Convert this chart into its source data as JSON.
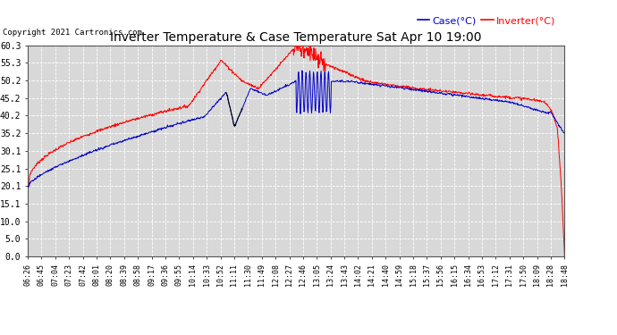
{
  "title": "Inverter Temperature & Case Temperature Sat Apr 10 19:00",
  "copyright": "Copyright 2021 Cartronics.com",
  "legend_case": "Case(°C)",
  "legend_inverter": "Inverter(°C)",
  "ylim": [
    0.0,
    60.3
  ],
  "yticks": [
    0.0,
    5.0,
    10.0,
    15.1,
    20.1,
    25.1,
    30.1,
    35.2,
    40.2,
    45.2,
    50.2,
    55.3,
    60.3
  ],
  "bg_color": "#ffffff",
  "plot_bg_color": "#d8d8d8",
  "grid_color": "#ffffff",
  "case_color": "#0000cc",
  "inverter_color": "#ff0000",
  "title_color": "#000000",
  "copyright_color": "#000000",
  "legend_case_color": "#0000cc",
  "legend_inverter_color": "#ff0000",
  "xtick_labels": [
    "06:26",
    "06:45",
    "07:04",
    "07:23",
    "07:42",
    "08:01",
    "08:20",
    "08:39",
    "08:58",
    "09:17",
    "09:36",
    "09:55",
    "10:14",
    "10:33",
    "10:52",
    "11:11",
    "11:30",
    "11:49",
    "12:08",
    "12:27",
    "12:46",
    "13:05",
    "13:24",
    "13:43",
    "14:02",
    "14:21",
    "14:40",
    "14:59",
    "15:18",
    "15:37",
    "15:56",
    "16:15",
    "16:34",
    "16:53",
    "17:12",
    "17:31",
    "17:50",
    "18:09",
    "18:28",
    "18:48"
  ]
}
